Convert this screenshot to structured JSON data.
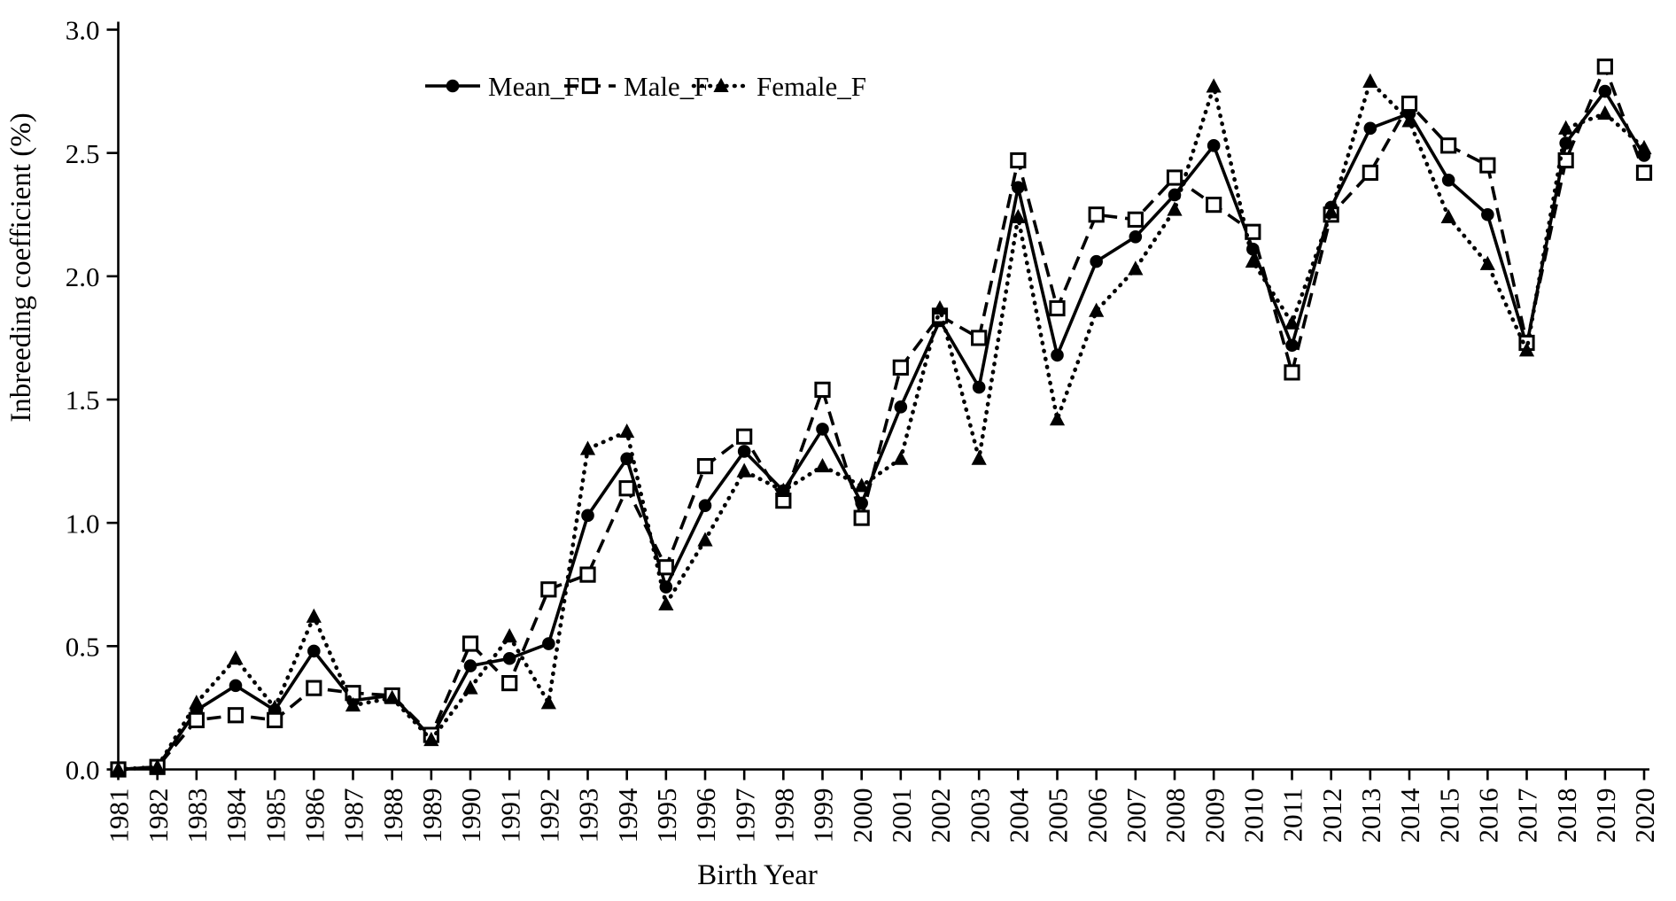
{
  "figure": {
    "background": "#ffffff",
    "foreground": "#000000"
  },
  "chart_data": {
    "type": "line",
    "title": "",
    "xlabel": "Birth Year",
    "ylabel": "Inbreeding coefficient (%)",
    "grid": false,
    "legend_position": "top-center",
    "ylim": [
      0.0,
      3.0
    ],
    "y_ticks": [
      0.0,
      0.5,
      1.0,
      1.5,
      2.0,
      2.5,
      3.0
    ],
    "x": [
      1981,
      1982,
      1983,
      1984,
      1985,
      1986,
      1987,
      1988,
      1989,
      1990,
      1991,
      1992,
      1993,
      1994,
      1995,
      1996,
      1997,
      1998,
      1999,
      2000,
      2001,
      2002,
      2003,
      2004,
      2005,
      2006,
      2007,
      2008,
      2009,
      2010,
      2011,
      2012,
      2013,
      2014,
      2015,
      2016,
      2017,
      2018,
      2019,
      2020
    ],
    "series": [
      {
        "name": "Mean_F",
        "line_style": "solid",
        "marker": "filled-circle",
        "color": "#000000",
        "values": [
          0.0,
          0.01,
          0.24,
          0.34,
          0.24,
          0.48,
          0.28,
          0.3,
          0.13,
          0.42,
          0.45,
          0.51,
          1.03,
          1.26,
          0.74,
          1.07,
          1.29,
          1.13,
          1.38,
          1.08,
          1.47,
          1.82,
          1.55,
          2.36,
          1.68,
          2.06,
          2.16,
          2.33,
          2.53,
          2.11,
          1.72,
          2.28,
          2.6,
          2.66,
          2.39,
          2.25,
          1.72,
          2.54,
          2.75,
          2.49
        ]
      },
      {
        "name": "Male_F",
        "line_style": "dashed",
        "marker": "open-square",
        "color": "#000000",
        "values": [
          0.0,
          0.01,
          0.2,
          0.22,
          0.2,
          0.33,
          0.31,
          0.3,
          0.14,
          0.51,
          0.35,
          0.73,
          0.79,
          1.14,
          0.82,
          1.23,
          1.35,
          1.09,
          1.54,
          1.02,
          1.63,
          1.84,
          1.75,
          2.47,
          1.87,
          2.25,
          2.23,
          2.4,
          2.29,
          2.18,
          1.61,
          2.25,
          2.42,
          2.7,
          2.53,
          2.45,
          1.73,
          2.47,
          2.85,
          2.42
        ]
      },
      {
        "name": "Female_F",
        "line_style": "dotted",
        "marker": "filled-triangle",
        "color": "#000000",
        "values": [
          0.0,
          0.01,
          0.27,
          0.45,
          0.25,
          0.62,
          0.26,
          0.29,
          0.12,
          0.33,
          0.54,
          0.27,
          1.3,
          1.37,
          0.67,
          0.93,
          1.21,
          1.13,
          1.23,
          1.15,
          1.26,
          1.87,
          1.26,
          2.24,
          1.42,
          1.86,
          2.03,
          2.27,
          2.77,
          2.06,
          1.81,
          2.26,
          2.79,
          2.63,
          2.24,
          2.05,
          1.7,
          2.6,
          2.66,
          2.52
        ]
      }
    ]
  }
}
